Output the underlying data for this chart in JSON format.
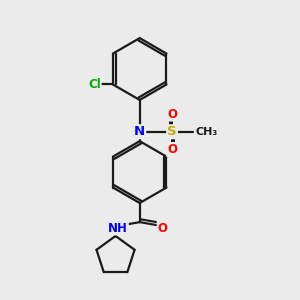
{
  "background_color": "#ebebeb",
  "bond_color": "#1a1a1a",
  "bond_width": 1.6,
  "atom_colors": {
    "N": "#0000ff",
    "O": "#ff0000",
    "S": "#ccaa00",
    "Cl": "#00aa00",
    "C": "#1a1a1a"
  }
}
